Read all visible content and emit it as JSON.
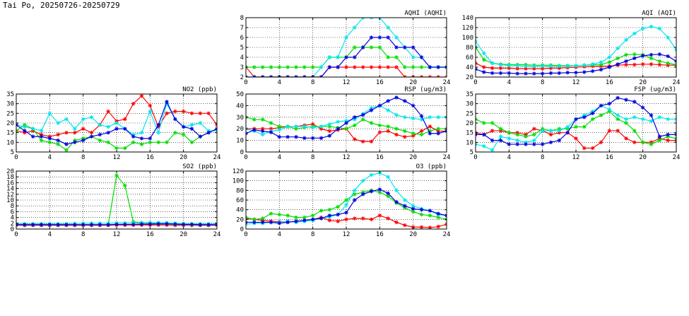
{
  "page": {
    "title": "Tai Po, 20250726-20250729"
  },
  "colors": {
    "red": "#ff0000",
    "green": "#00dd00",
    "cyan": "#00e5ee",
    "blue": "#0000dd"
  },
  "chart_data": [
    {
      "id": "aqhi",
      "type": "line",
      "title": "AQHI (AQHI)",
      "xlim": [
        0,
        24
      ],
      "ylim": [
        2,
        8
      ],
      "grid": true,
      "xticks": [
        "0",
        "4",
        "8",
        "12",
        "16",
        "20",
        "24"
      ],
      "yticks": [
        "2",
        "3",
        "4",
        "5",
        "6",
        "7",
        "8"
      ],
      "x": [
        0,
        1,
        2,
        3,
        4,
        5,
        6,
        7,
        8,
        9,
        10,
        11,
        12,
        13,
        14,
        15,
        16,
        17,
        18,
        19,
        20,
        21,
        22,
        23,
        24
      ],
      "series": [
        {
          "color": "red",
          "values": [
            3,
            2,
            2,
            2,
            2,
            2,
            2,
            2,
            2,
            2,
            3,
            3,
            3,
            3,
            3,
            3,
            3,
            3,
            3,
            2,
            2,
            2,
            2,
            2,
            2
          ]
        },
        {
          "color": "green",
          "values": [
            3,
            3,
            3,
            3,
            3,
            3,
            3,
            3,
            3,
            3,
            4,
            4,
            4,
            5,
            5,
            5,
            5,
            4,
            4,
            3,
            3,
            3,
            3,
            3,
            3
          ]
        },
        {
          "color": "cyan",
          "values": [
            2,
            2,
            2,
            2,
            2,
            2,
            2,
            2,
            2,
            3,
            4,
            4,
            6,
            7,
            8,
            8,
            8,
            7,
            6,
            5,
            4,
            4,
            3,
            3,
            3
          ]
        },
        {
          "color": "blue",
          "values": [
            2,
            2,
            2,
            2,
            2,
            2,
            2,
            2,
            2,
            2,
            3,
            3,
            4,
            4,
            5,
            6,
            6,
            6,
            5,
            5,
            5,
            4,
            3,
            3,
            3
          ]
        }
      ]
    },
    {
      "id": "aqi",
      "type": "line",
      "title": "AQI (AQI)",
      "xlim": [
        0,
        24
      ],
      "ylim": [
        20,
        140
      ],
      "grid": true,
      "xticks": [
        "0",
        "4",
        "8",
        "12",
        "16",
        "20",
        "24"
      ],
      "yticks": [
        "20",
        "40",
        "60",
        "80",
        "100",
        "120",
        "140"
      ],
      "x": [
        0,
        1,
        2,
        3,
        4,
        5,
        6,
        7,
        8,
        9,
        10,
        11,
        12,
        13,
        14,
        15,
        16,
        17,
        18,
        19,
        20,
        21,
        22,
        23,
        24
      ],
      "series": [
        {
          "color": "red",
          "values": [
            48,
            40,
            38,
            38,
            38,
            37,
            37,
            37,
            37,
            38,
            38,
            39,
            40,
            41,
            42,
            42,
            42,
            44,
            45,
            45,
            46,
            46,
            45,
            44,
            44
          ]
        },
        {
          "color": "green",
          "values": [
            80,
            55,
            48,
            46,
            45,
            45,
            45,
            44,
            44,
            44,
            43,
            43,
            43,
            44,
            45,
            45,
            50,
            58,
            65,
            66,
            65,
            58,
            52,
            48,
            45
          ]
        },
        {
          "color": "cyan",
          "values": [
            92,
            68,
            48,
            45,
            43,
            43,
            42,
            42,
            42,
            42,
            42,
            42,
            43,
            44,
            46,
            50,
            60,
            78,
            95,
            108,
            118,
            122,
            118,
            100,
            75
          ]
        },
        {
          "color": "blue",
          "values": [
            36,
            30,
            28,
            28,
            28,
            27,
            27,
            27,
            27,
            28,
            28,
            29,
            29,
            30,
            32,
            35,
            40,
            46,
            52,
            58,
            63,
            65,
            66,
            62,
            52
          ]
        }
      ]
    },
    {
      "id": "no2",
      "type": "line",
      "title": "NO2 (ppb)",
      "xlim": [
        0,
        24
      ],
      "ylim": [
        5,
        35
      ],
      "grid": true,
      "xticks": [
        "0",
        "4",
        "8",
        "12",
        "16",
        "20",
        "24"
      ],
      "yticks": [
        "5",
        "10",
        "15",
        "20",
        "25",
        "30",
        "35"
      ],
      "x": [
        0,
        1,
        2,
        3,
        4,
        5,
        6,
        7,
        8,
        9,
        10,
        11,
        12,
        13,
        14,
        15,
        16,
        17,
        18,
        19,
        20,
        21,
        22,
        23,
        24
      ],
      "series": [
        {
          "color": "red",
          "values": [
            16,
            15,
            16,
            14,
            13,
            14,
            15,
            15,
            17,
            15,
            19,
            26,
            21,
            22,
            30,
            34,
            29,
            18,
            25,
            26,
            26,
            25,
            25,
            25,
            19
          ]
        },
        {
          "color": "green",
          "values": [
            16,
            19,
            17,
            11,
            10,
            9,
            6,
            11,
            12,
            13,
            11,
            10,
            7,
            7,
            10,
            9,
            10,
            10,
            10,
            15,
            14,
            10,
            13,
            15,
            17
          ]
        },
        {
          "color": "cyan",
          "values": [
            19,
            18,
            17,
            16,
            25,
            20,
            22,
            17,
            22,
            23,
            19,
            18,
            20,
            17,
            14,
            15,
            26,
            15,
            30,
            22,
            18,
            19,
            20,
            16,
            16
          ]
        },
        {
          "color": "blue",
          "values": [
            19,
            16,
            13,
            13,
            12,
            11,
            9,
            10,
            11,
            13,
            14,
            15,
            17,
            17,
            13,
            12,
            12,
            19,
            31,
            22,
            18,
            17,
            13,
            15,
            17
          ]
        }
      ]
    },
    {
      "id": "rsp",
      "type": "line",
      "title": "RSP (ug/m3)",
      "xlim": [
        0,
        24
      ],
      "ylim": [
        0,
        50
      ],
      "grid": true,
      "xticks": [
        "0",
        "4",
        "8",
        "12",
        "16",
        "20",
        "24"
      ],
      "yticks": [
        "0",
        "10",
        "20",
        "30",
        "40",
        "50"
      ],
      "x": [
        0,
        1,
        2,
        3,
        4,
        5,
        6,
        7,
        8,
        9,
        10,
        11,
        12,
        13,
        14,
        15,
        16,
        17,
        18,
        19,
        20,
        21,
        22,
        23,
        24
      ],
      "series": [
        {
          "color": "red",
          "values": [
            20,
            20,
            20,
            20,
            21,
            22,
            22,
            23,
            24,
            20,
            18,
            19,
            20,
            11,
            9,
            9,
            17,
            18,
            15,
            13,
            14,
            18,
            22,
            18,
            18
          ]
        },
        {
          "color": "green",
          "values": [
            30,
            28,
            28,
            25,
            22,
            22,
            20,
            21,
            22,
            22,
            22,
            21,
            20,
            23,
            28,
            25,
            23,
            22,
            20,
            18,
            16,
            15,
            18,
            20,
            20
          ]
        },
        {
          "color": "cyan",
          "values": [
            20,
            18,
            15,
            18,
            19,
            22,
            22,
            22,
            21,
            22,
            24,
            26,
            27,
            28,
            33,
            38,
            40,
            36,
            32,
            30,
            29,
            28,
            30,
            30,
            30
          ]
        },
        {
          "color": "blue",
          "values": [
            16,
            19,
            18,
            17,
            13,
            13,
            13,
            12,
            12,
            12,
            14,
            20,
            25,
            30,
            32,
            36,
            40,
            44,
            47,
            44,
            40,
            31,
            16,
            16,
            18
          ]
        }
      ]
    },
    {
      "id": "fsp",
      "type": "line",
      "title": "FSP (ug/m3)",
      "xlim": [
        0,
        24
      ],
      "ylim": [
        5,
        35
      ],
      "grid": true,
      "xticks": [
        "0",
        "4",
        "8",
        "12",
        "16",
        "20",
        "24"
      ],
      "yticks": [
        "5",
        "10",
        "15",
        "20",
        "25",
        "30",
        "35"
      ],
      "x": [
        0,
        1,
        2,
        3,
        4,
        5,
        6,
        7,
        8,
        9,
        10,
        11,
        12,
        13,
        14,
        15,
        16,
        17,
        18,
        19,
        20,
        21,
        22,
        23,
        24
      ],
      "series": [
        {
          "color": "red",
          "values": [
            15,
            14,
            16,
            16,
            15,
            15,
            14,
            17,
            16,
            14,
            15,
            15,
            12,
            7,
            7,
            10,
            16,
            16,
            12,
            10,
            10,
            10,
            12,
            11,
            11
          ]
        },
        {
          "color": "green",
          "values": [
            22,
            20,
            20,
            17,
            15,
            14,
            13,
            14,
            17,
            16,
            17,
            17,
            18,
            18,
            22,
            24,
            26,
            22,
            20,
            16,
            10,
            9,
            11,
            13,
            12
          ]
        },
        {
          "color": "cyan",
          "values": [
            9,
            8,
            6,
            13,
            12,
            11,
            10,
            11,
            16,
            16,
            16,
            18,
            22,
            24,
            26,
            29,
            27,
            24,
            22,
            23,
            22,
            21,
            23,
            22,
            22
          ]
        },
        {
          "color": "blue",
          "values": [
            14,
            14,
            11,
            11,
            9,
            9,
            9,
            9,
            9,
            10,
            11,
            15,
            22,
            23,
            25,
            29,
            30,
            33,
            32,
            31,
            28,
            24,
            13,
            14,
            14
          ]
        }
      ]
    },
    {
      "id": "so2",
      "type": "line",
      "title": "SO2 (ppb)",
      "xlim": [
        0,
        24
      ],
      "ylim": [
        0,
        20
      ],
      "grid": true,
      "xticks": [
        "0",
        "4",
        "8",
        "12",
        "16",
        "20",
        "24"
      ],
      "yticks": [
        "0",
        "2",
        "4",
        "6",
        "8",
        "10",
        "12",
        "14",
        "16",
        "18",
        "20"
      ],
      "x": [
        0,
        1,
        2,
        3,
        4,
        5,
        6,
        7,
        8,
        9,
        10,
        11,
        12,
        13,
        14,
        15,
        16,
        17,
        18,
        19,
        20,
        21,
        22,
        23,
        24
      ],
      "series": [
        {
          "color": "red",
          "values": [
            1.3,
            1.3,
            1.3,
            1.3,
            1.3,
            1.3,
            1.3,
            1.3,
            1.3,
            1.3,
            1.3,
            1.3,
            1.4,
            1.4,
            1.4,
            1.4,
            1.4,
            1.4,
            1.4,
            1.3,
            1.3,
            1.3,
            1.3,
            1.3,
            1.3
          ]
        },
        {
          "color": "green",
          "values": [
            1.5,
            1.5,
            1.5,
            1.5,
            1.5,
            1.5,
            1.5,
            1.5,
            1.5,
            1.5,
            1.5,
            1.5,
            18.5,
            15,
            2.5,
            2.2,
            2,
            1.8,
            1.8,
            1.6,
            1.6,
            1.5,
            1.5,
            1.5,
            1.5
          ]
        },
        {
          "color": "cyan",
          "values": [
            1.8,
            1.8,
            1.8,
            1.8,
            1.8,
            1.8,
            1.8,
            1.9,
            2,
            2,
            2,
            2,
            2.1,
            2.1,
            2.1,
            2.2,
            2.2,
            2.2,
            2.2,
            2,
            1.9,
            1.8,
            1.8,
            1.8,
            1.8
          ]
        },
        {
          "color": "blue",
          "values": [
            1.5,
            1.5,
            1.5,
            1.5,
            1.5,
            1.5,
            1.5,
            1.5,
            1.5,
            1.5,
            1.5,
            1.5,
            1.6,
            1.6,
            1.6,
            1.7,
            1.7,
            1.8,
            1.8,
            1.7,
            1.6,
            1.6,
            1.5,
            1.5,
            1.5
          ]
        }
      ]
    },
    {
      "id": "o3",
      "type": "line",
      "title": "O3 (ppb)",
      "xlim": [
        0,
        24
      ],
      "ylim": [
        0,
        120
      ],
      "grid": true,
      "xticks": [
        "0",
        "4",
        "8",
        "12",
        "16",
        "20",
        "24"
      ],
      "yticks": [
        "0",
        "20",
        "40",
        "60",
        "80",
        "100",
        "120"
      ],
      "x": [
        0,
        1,
        2,
        3,
        4,
        5,
        6,
        7,
        8,
        9,
        10,
        11,
        12,
        13,
        14,
        15,
        16,
        17,
        18,
        19,
        20,
        21,
        22,
        23,
        24
      ],
      "series": [
        {
          "color": "red",
          "values": [
            22,
            20,
            18,
            16,
            15,
            15,
            16,
            18,
            20,
            24,
            18,
            16,
            20,
            22,
            22,
            20,
            28,
            22,
            14,
            8,
            4,
            4,
            3,
            5,
            10
          ]
        },
        {
          "color": "green",
          "values": [
            24,
            20,
            22,
            32,
            30,
            28,
            24,
            24,
            28,
            38,
            40,
            46,
            60,
            72,
            76,
            80,
            76,
            68,
            54,
            44,
            36,
            30,
            28,
            24,
            20
          ]
        },
        {
          "color": "cyan",
          "values": [
            10,
            12,
            12,
            14,
            14,
            16,
            14,
            16,
            18,
            22,
            25,
            30,
            50,
            80,
            100,
            112,
            116,
            108,
            80,
            60,
            48,
            42,
            38,
            30,
            28
          ]
        },
        {
          "color": "blue",
          "values": [
            14,
            14,
            14,
            14,
            12,
            14,
            16,
            18,
            20,
            22,
            28,
            30,
            34,
            60,
            72,
            78,
            82,
            74,
            56,
            48,
            42,
            40,
            38,
            32,
            28
          ]
        }
      ]
    }
  ]
}
